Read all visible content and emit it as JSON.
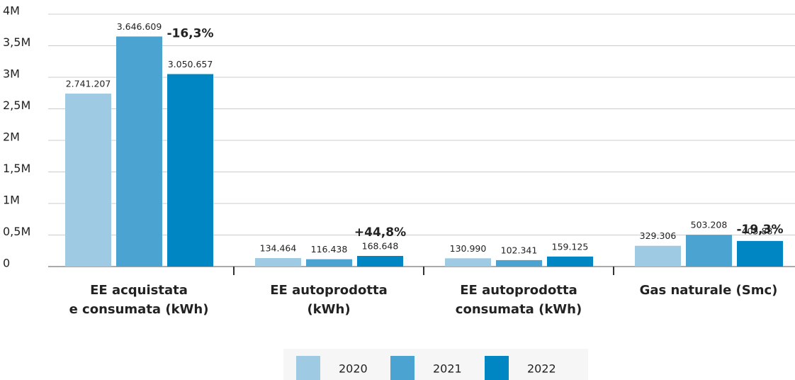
{
  "chart_data": {
    "type": "bar",
    "categories": [
      "EE acquistata\ne consumata (kWh)",
      "EE autoprodotta\n(kWh)",
      "EE autoprodotta\nconsumata (kWh)",
      "Gas naturale (Smc)"
    ],
    "series": [
      {
        "name": "2020",
        "color": "#9ecae3",
        "values": [
          2741207,
          134464,
          130990,
          329306
        ],
        "value_labels": [
          "2.741.207",
          "134.464",
          "130.990",
          "329.306"
        ]
      },
      {
        "name": "2021",
        "color": "#4aa3d1",
        "values": [
          3646609,
          116438,
          102341,
          503208
        ],
        "value_labels": [
          "3.646.609",
          "116.438",
          "102.341",
          "503.208"
        ]
      },
      {
        "name": "2022",
        "color": "#0086c3",
        "values": [
          3050657,
          168648,
          159125,
          405887
        ],
        "value_labels": [
          "3.050.657",
          "168.648",
          "159.125",
          "405.887"
        ]
      }
    ],
    "change_labels": [
      "-16,3%",
      "+44,8%",
      null,
      "-19,3%"
    ],
    "change_color": "#1a8fc7",
    "ylim": [
      0,
      4000000
    ],
    "yticks": [
      0,
      {
        "value": 500000,
        "label": "0,5M"
      },
      {
        "value": 1000000,
        "label": "1M"
      },
      {
        "value": 1500000,
        "label": "1,5M"
      },
      {
        "value": 2000000,
        "label": "2M"
      },
      {
        "value": 2500000,
        "label": "2,5M"
      },
      {
        "value": 3000000,
        "label": "3M"
      },
      {
        "value": 3500000,
        "label": "3,5M"
      },
      {
        "value": 4000000,
        "label": "4M"
      }
    ],
    "grid": true,
    "legend": "bottom"
  }
}
